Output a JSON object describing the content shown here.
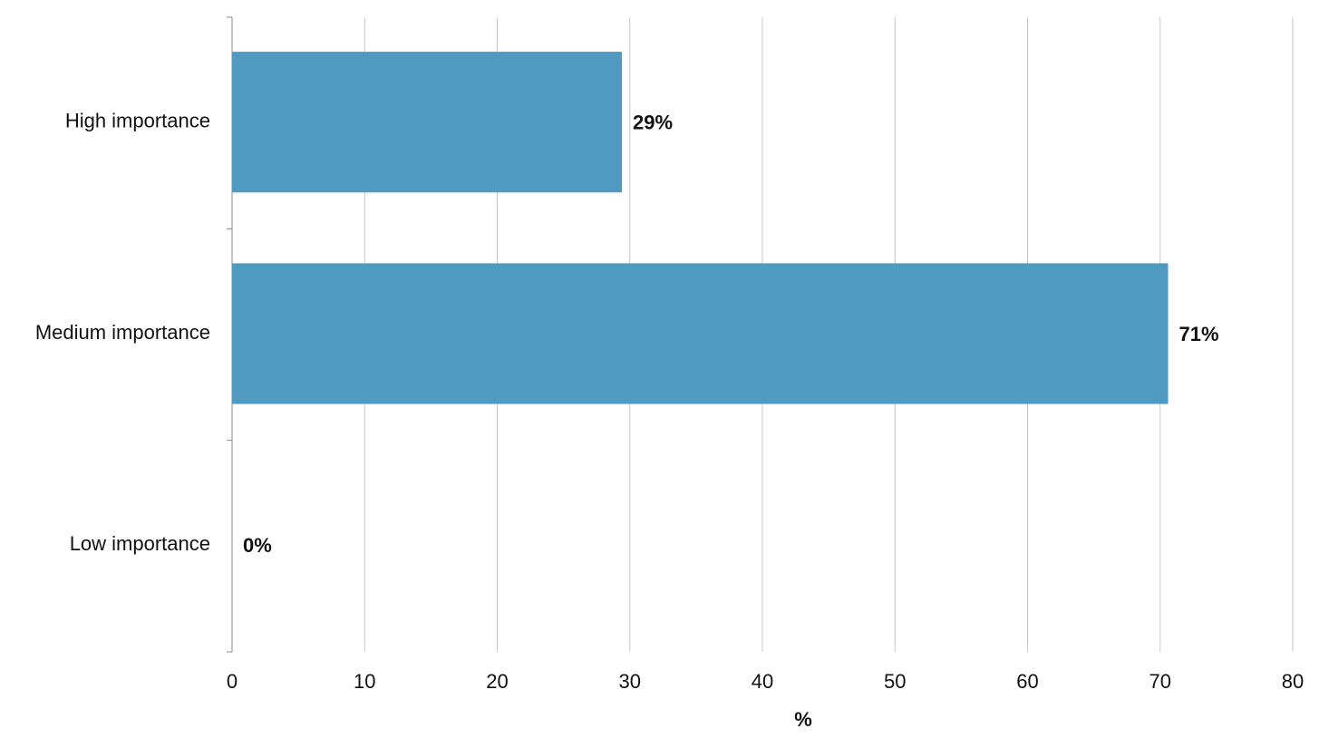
{
  "chart_data": {
    "type": "bar",
    "orientation": "horizontal",
    "categories": [
      "High importance",
      "Medium importance",
      "Low importance"
    ],
    "values": [
      29.4,
      70.6,
      0
    ],
    "value_labels": [
      "29%",
      "71%",
      "0%"
    ],
    "color": "#4f9ac1",
    "xlabel": "%",
    "xlim": [
      0,
      80
    ],
    "xticks": [
      0,
      10,
      20,
      30,
      40,
      50,
      60,
      70,
      80
    ],
    "grid": true
  }
}
